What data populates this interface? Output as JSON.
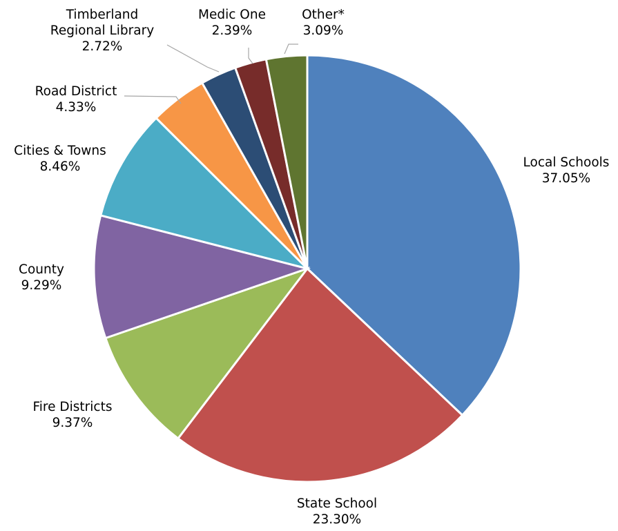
{
  "chart_data": {
    "type": "pie",
    "title": "",
    "start_angle_deg": 0,
    "direction": "clockwise",
    "slices": [
      {
        "name": "Local Schools",
        "label_lines": [
          "Local Schools"
        ],
        "value_label": "37.05%",
        "value": 37.05,
        "color": "#4F81BD"
      },
      {
        "name": "State School",
        "label_lines": [
          "State School"
        ],
        "value_label": "23.30%",
        "value": 23.3,
        "color": "#C0504D"
      },
      {
        "name": "Fire Districts",
        "label_lines": [
          "Fire Districts"
        ],
        "value_label": "9.37%",
        "value": 9.37,
        "color": "#9BBB59"
      },
      {
        "name": "County",
        "label_lines": [
          "County"
        ],
        "value_label": "9.29%",
        "value": 9.29,
        "color": "#8064A2"
      },
      {
        "name": "Cities & Towns",
        "label_lines": [
          "Cities & Towns"
        ],
        "value_label": "8.46%",
        "value": 8.46,
        "color": "#4BACC6"
      },
      {
        "name": "Road District",
        "label_lines": [
          "Road District"
        ],
        "value_label": "4.33%",
        "value": 4.33,
        "color": "#F79646"
      },
      {
        "name": "Timberland Regional Library",
        "label_lines": [
          "Timberland",
          "Regional Library"
        ],
        "value_label": "2.72%",
        "value": 2.72,
        "color": "#2C4D75"
      },
      {
        "name": "Medic One",
        "label_lines": [
          "Medic One"
        ],
        "value_label": "2.39%",
        "value": 2.39,
        "color": "#772C2A"
      },
      {
        "name": "Other*",
        "label_lines": [
          "Other*"
        ],
        "value_label": "3.09%",
        "value": 3.09,
        "color": "#5F7530"
      }
    ]
  }
}
